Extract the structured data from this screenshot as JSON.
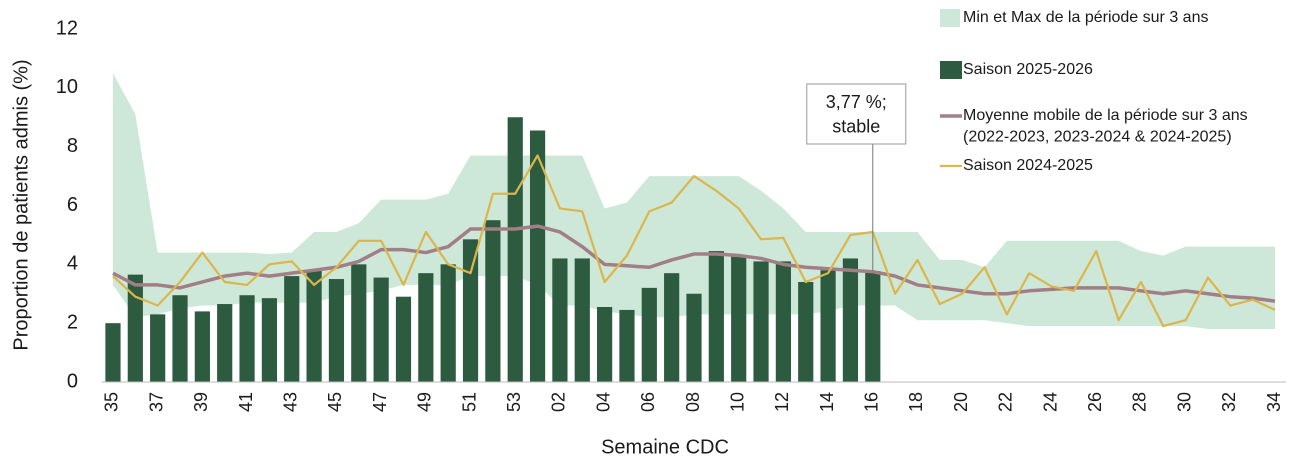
{
  "chart_data": {
    "type": "combo",
    "x_label": "Semaine CDC",
    "y_label": "Proportion de patients admis (%)",
    "categories": [
      "35",
      null,
      "37",
      null,
      "39",
      null,
      "41",
      null,
      "43",
      null,
      "45",
      null,
      "47",
      null,
      "49",
      null,
      "51",
      null,
      "53",
      null,
      "02",
      null,
      "04",
      null,
      "06",
      null,
      "08",
      null,
      "10",
      null,
      "12",
      null,
      "14",
      null,
      "16",
      null,
      "18",
      null,
      "20",
      null,
      "22",
      null,
      "24",
      null,
      "26",
      null,
      "28",
      null,
      "30",
      null,
      "32",
      null,
      "34"
    ],
    "ylim": [
      0,
      12
    ],
    "yticks": [
      0,
      2,
      4,
      6,
      8,
      10,
      12
    ],
    "series": [
      {
        "name": "Min et Max de la période sur 3 ans",
        "type": "range",
        "color": "#cde8d9",
        "low": [
          3.3,
          2.2,
          2.3,
          2.5,
          2.6,
          2.6,
          2.7,
          2.7,
          2.7,
          2.7,
          2.9,
          3.0,
          3.1,
          3.3,
          3.3,
          3.3,
          3.6,
          3.6,
          3.6,
          3.3,
          2.6,
          2.6,
          2.4,
          2.3,
          2.2,
          2.2,
          2.3,
          2.3,
          2.3,
          2.3,
          2.3,
          2.3,
          2.4,
          2.6,
          2.6,
          2.6,
          2.1,
          2.1,
          2.1,
          2.1,
          2.0,
          1.9,
          1.9,
          1.9,
          1.9,
          1.9,
          1.9,
          1.9,
          1.9,
          1.8,
          1.8,
          1.8,
          1.8
        ],
        "high": [
          10.5,
          9.1,
          4.4,
          4.4,
          4.4,
          4.4,
          4.4,
          4.35,
          4.4,
          5.1,
          5.1,
          5.4,
          6.2,
          6.2,
          6.2,
          6.4,
          7.7,
          7.7,
          7.7,
          7.7,
          7.7,
          7.7,
          5.9,
          6.1,
          7.0,
          7.0,
          7.0,
          7.0,
          7.0,
          6.5,
          5.9,
          5.1,
          5.1,
          5.1,
          5.1,
          5.1,
          5.1,
          4.15,
          4.15,
          3.9,
          4.8,
          4.8,
          4.8,
          4.8,
          4.8,
          4.8,
          4.45,
          4.3,
          4.6,
          4.6,
          4.6,
          4.6,
          4.6
        ]
      },
      {
        "name": "Saison 2025-2026",
        "type": "bar",
        "color": "#2d5b40",
        "values": [
          2.0,
          3.65,
          2.3,
          2.95,
          2.4,
          2.65,
          2.95,
          2.85,
          3.6,
          3.8,
          3.5,
          4.0,
          3.55,
          2.9,
          3.7,
          4.0,
          4.85,
          5.5,
          9.0,
          8.55,
          4.2,
          4.2,
          2.55,
          2.45,
          3.2,
          3.7,
          3.0,
          4.45,
          4.3,
          4.1,
          4.1,
          3.4,
          3.8,
          4.2,
          3.77,
          null,
          null,
          null,
          null,
          null,
          null,
          null,
          null,
          null,
          null,
          null,
          null,
          null,
          null,
          null,
          null,
          null,
          null
        ]
      },
      {
        "name": "Moyenne mobile de la période sur 3 ans\n(2022-2023, 2023-2024 & 2024-2025)",
        "type": "line",
        "color": "#a27e86",
        "width": 3.5,
        "values": [
          3.7,
          3.3,
          3.3,
          3.2,
          3.4,
          3.6,
          3.7,
          3.6,
          3.7,
          3.8,
          3.9,
          4.1,
          4.5,
          4.5,
          4.4,
          4.6,
          5.2,
          5.2,
          5.2,
          5.3,
          5.1,
          4.6,
          4.0,
          3.95,
          3.9,
          4.15,
          4.35,
          4.35,
          4.3,
          4.2,
          4.0,
          3.9,
          3.85,
          3.8,
          3.75,
          3.6,
          3.3,
          3.2,
          3.1,
          3.0,
          3.0,
          3.1,
          3.15,
          3.2,
          3.2,
          3.2,
          3.1,
          3.0,
          3.1,
          3.0,
          2.9,
          2.85,
          2.75
        ]
      },
      {
        "name": "Saison 2024-2025",
        "type": "line",
        "color": "#dcb54b",
        "width": 2.2,
        "values": [
          3.6,
          2.9,
          2.6,
          3.4,
          4.4,
          3.4,
          3.3,
          4.0,
          4.1,
          3.3,
          3.9,
          4.8,
          4.8,
          3.3,
          5.1,
          4.0,
          3.7,
          6.4,
          6.4,
          7.7,
          5.9,
          5.8,
          3.4,
          4.3,
          5.8,
          6.1,
          7.0,
          6.5,
          5.9,
          4.85,
          4.9,
          3.4,
          3.7,
          5.0,
          5.1,
          3.0,
          4.15,
          2.65,
          3.0,
          3.9,
          2.3,
          3.7,
          3.25,
          3.1,
          4.45,
          2.1,
          3.4,
          1.9,
          2.1,
          3.55,
          2.6,
          2.8,
          2.45
        ]
      }
    ],
    "annotation": "3,77 %;\nstable"
  }
}
